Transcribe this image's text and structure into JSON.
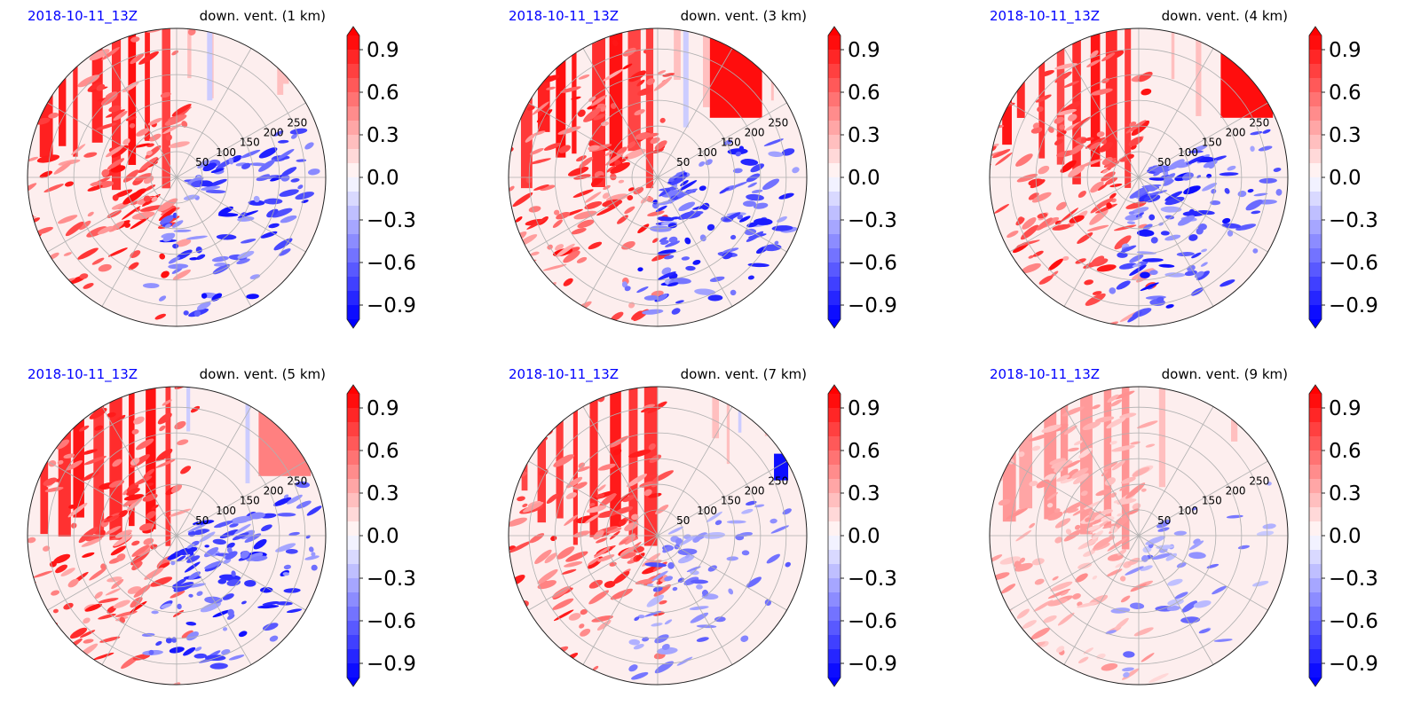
{
  "colors": {
    "date_title": "#0000ff",
    "var_title": "#000000",
    "positive": "#ff0000",
    "negative": "#0000ff",
    "neutral": "#ffffff",
    "grid": "#b0b0b0"
  },
  "colorbar": {
    "tick_labels": [
      "0.9",
      "0.6",
      "0.3",
      "0.0",
      "−0.3",
      "−0.6",
      "−0.9"
    ],
    "tick_values": [
      0.9,
      0.6,
      0.3,
      0.0,
      -0.3,
      -0.6,
      -0.9
    ],
    "range": [
      -1.0,
      1.0
    ],
    "extend": "both",
    "cmap": "bwr"
  },
  "chart_data": [
    {
      "type": "heatmap",
      "projection": "polar",
      "title_left": "2018-10-11_13Z",
      "title_right": "down. vent. (1 km)",
      "radial_ticks": [
        50,
        100,
        150,
        200,
        250
      ],
      "radial_tick_labels": [
        "50",
        "100",
        "150",
        "200",
        "250"
      ],
      "clim": [
        -1.0,
        1.0
      ],
      "pattern": "red_west_blue_south"
    },
    {
      "type": "heatmap",
      "projection": "polar",
      "title_left": "2018-10-11_13Z",
      "title_right": "down. vent. (3 km)",
      "radial_ticks": [
        50,
        100,
        150,
        200,
        250
      ],
      "radial_tick_labels": [
        "50",
        "100",
        "150",
        "200",
        "250"
      ],
      "clim": [
        -1.0,
        1.0
      ],
      "pattern": "red_west_blue_southeast"
    },
    {
      "type": "heatmap",
      "projection": "polar",
      "title_left": "2018-10-11_13Z",
      "title_right": "down. vent. (4 km)",
      "radial_ticks": [
        50,
        100,
        150,
        200,
        250
      ],
      "radial_tick_labels": [
        "50",
        "100",
        "150",
        "200",
        "250"
      ],
      "clim": [
        -1.0,
        1.0
      ],
      "pattern": "red_west_blue_southeast"
    },
    {
      "type": "heatmap",
      "projection": "polar",
      "title_left": "2018-10-11_13Z",
      "title_right": "down. vent. (5 km)",
      "radial_ticks": [
        50,
        100,
        150,
        200,
        250
      ],
      "radial_tick_labels": [
        "50",
        "100",
        "150",
        "200",
        "250"
      ],
      "clim": [
        -1.0,
        1.0
      ],
      "pattern": "red_west_blue_southeast"
    },
    {
      "type": "heatmap",
      "projection": "polar",
      "title_left": "2018-10-11_13Z",
      "title_right": "down. vent. (7 km)",
      "radial_ticks": [
        50,
        100,
        150,
        200,
        250
      ],
      "radial_tick_labels": [
        "50",
        "100",
        "150",
        "200",
        "250"
      ],
      "clim": [
        -1.0,
        1.0
      ],
      "pattern": "red_west_weak_blue_southeast"
    },
    {
      "type": "heatmap",
      "projection": "polar",
      "title_left": "2018-10-11_13Z",
      "title_right": "down. vent. (9 km)",
      "radial_ticks": [
        50,
        100,
        150,
        200,
        250
      ],
      "radial_tick_labels": [
        "50",
        "100",
        "150",
        "200",
        "250"
      ],
      "clim": [
        -1.0,
        1.0
      ],
      "pattern": "weak_red_west_weak_blue_east"
    }
  ]
}
